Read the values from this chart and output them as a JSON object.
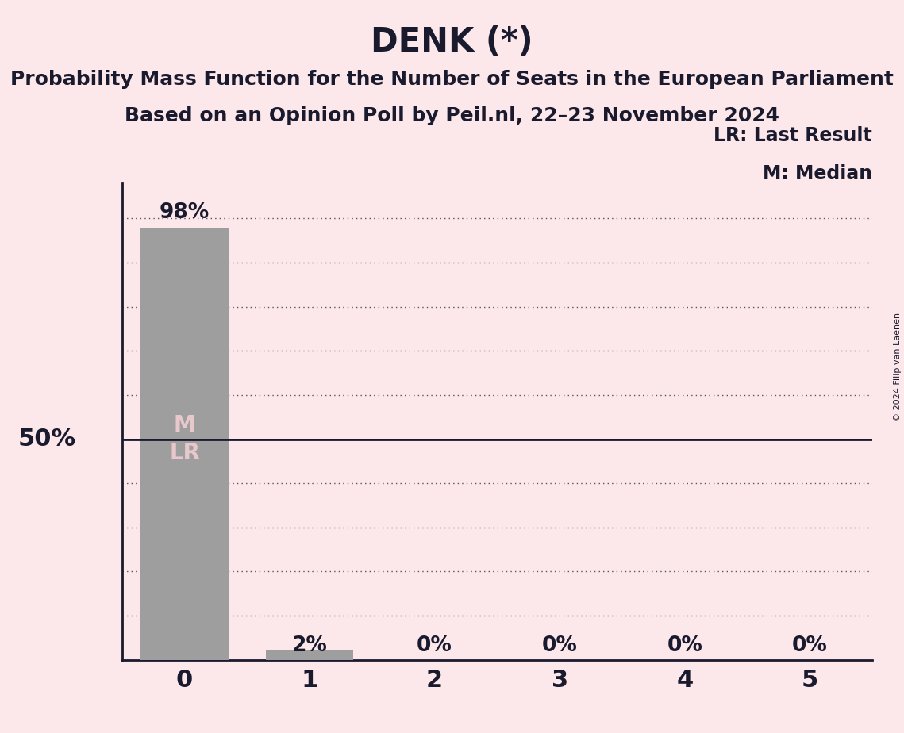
{
  "title": "DENK (*)",
  "subtitle1": "Probability Mass Function for the Number of Seats in the European Parliament",
  "subtitle2": "Based on an Opinion Poll by Peil.nl, 22–23 November 2024",
  "copyright": "© 2024 Filip van Laenen",
  "legend_lr": "LR: Last Result",
  "legend_m": "M: Median",
  "categories": [
    0,
    1,
    2,
    3,
    4,
    5
  ],
  "values": [
    0.98,
    0.02,
    0.0,
    0.0,
    0.0,
    0.0
  ],
  "bar_labels": [
    "98%",
    "2%",
    "0%",
    "0%",
    "0%",
    "0%"
  ],
  "bar_color": "#9e9e9e",
  "background_color": "#fce8ea",
  "text_color": "#1a1a2e",
  "ylabel_50": "50%",
  "median": 0,
  "last_result": 0,
  "hline_50_color": "#1a1a2e",
  "dotted_line_color": "#555555",
  "ylim": [
    0,
    1.08
  ],
  "bar_width": 0.7,
  "title_fontsize": 30,
  "subtitle_fontsize": 18,
  "tick_fontsize": 22,
  "ylabel_fontsize": 22,
  "legend_fontsize": 17,
  "bar_annotation_fontsize": 19,
  "M_LR_fontsize": 20,
  "M_LR_color": "#e8c8cc",
  "dotted_line_positions": [
    0.1,
    0.2,
    0.3,
    0.4,
    0.6,
    0.7,
    0.8,
    0.9,
    1.0
  ]
}
